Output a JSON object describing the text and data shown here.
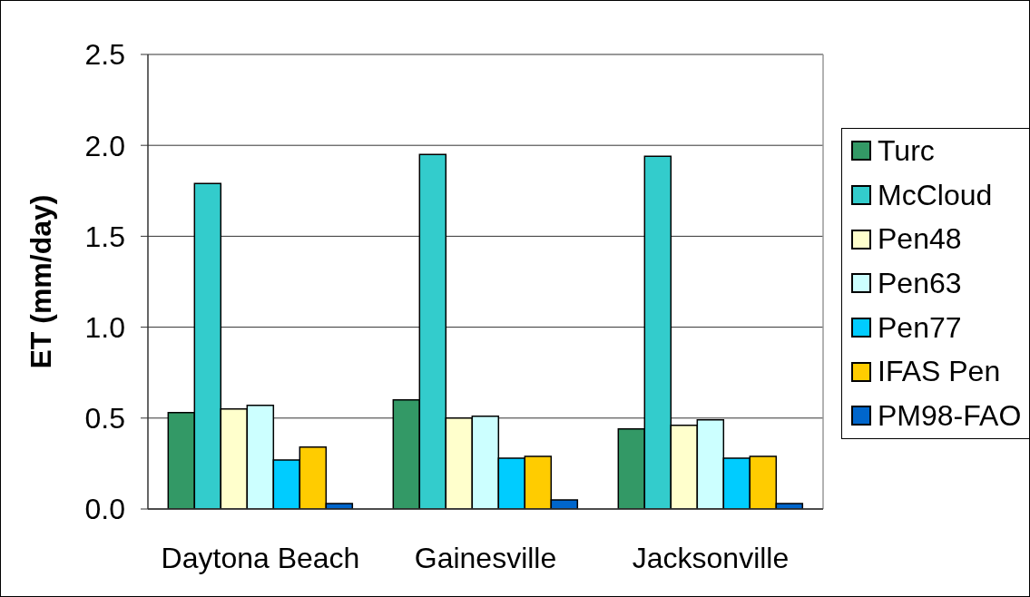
{
  "chart_data": {
    "type": "bar",
    "ylabel": "ET (mm/day)",
    "categories": [
      "Daytona Beach",
      "Gainesville",
      "Jacksonville"
    ],
    "series": [
      {
        "name": "Turc",
        "color": "#339966",
        "values": [
          0.53,
          0.6,
          0.44
        ]
      },
      {
        "name": "McCloud",
        "color": "#33cccc",
        "values": [
          1.79,
          1.95,
          1.94
        ]
      },
      {
        "name": "Pen48",
        "color": "#ffffcc",
        "values": [
          0.55,
          0.5,
          0.46
        ]
      },
      {
        "name": "Pen63",
        "color": "#ccffff",
        "values": [
          0.57,
          0.51,
          0.49
        ]
      },
      {
        "name": "Pen77",
        "color": "#00ccff",
        "values": [
          0.27,
          0.28,
          0.28
        ]
      },
      {
        "name": "IFAS Pen",
        "color": "#ffcc00",
        "values": [
          0.34,
          0.29,
          0.29
        ]
      },
      {
        "name": "PM98-FAO",
        "color": "#0066cc",
        "values": [
          0.03,
          0.05,
          0.03
        ]
      }
    ],
    "ylim": [
      0,
      2.5
    ],
    "yticks": [
      {
        "value": 0,
        "label": "0.0"
      },
      0.5,
      {
        "value": 1,
        "label": "1.0"
      },
      1.5,
      {
        "value": 2,
        "label": "2.0"
      },
      2.5
    ],
    "grid": "y",
    "legend": "right"
  }
}
